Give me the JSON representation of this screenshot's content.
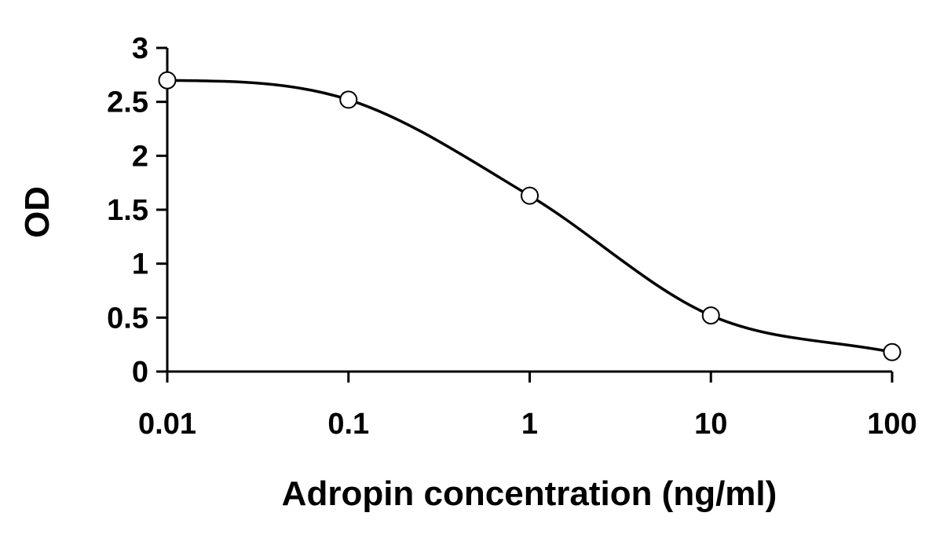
{
  "chart_data": {
    "type": "scatter",
    "title": "",
    "xlabel": "Adropin concentration (ng/ml)",
    "ylabel": "OD",
    "x_scale": "log",
    "x_ticks": [
      "0.01",
      "0.1",
      "1",
      "10",
      "100"
    ],
    "y_ticks": [
      "0",
      "0.5",
      "1",
      "1.5",
      "2",
      "2.5",
      "3"
    ],
    "xlim": [
      0.01,
      100
    ],
    "ylim": [
      0,
      3
    ],
    "grid": false,
    "legend": "none",
    "series": [
      {
        "x": [
          0.01,
          0.1,
          1,
          10,
          100
        ],
        "y": [
          2.7,
          2.52,
          1.63,
          0.52,
          0.18
        ],
        "style": "smooth line with open circle markers",
        "color": "#000000"
      }
    ]
  }
}
